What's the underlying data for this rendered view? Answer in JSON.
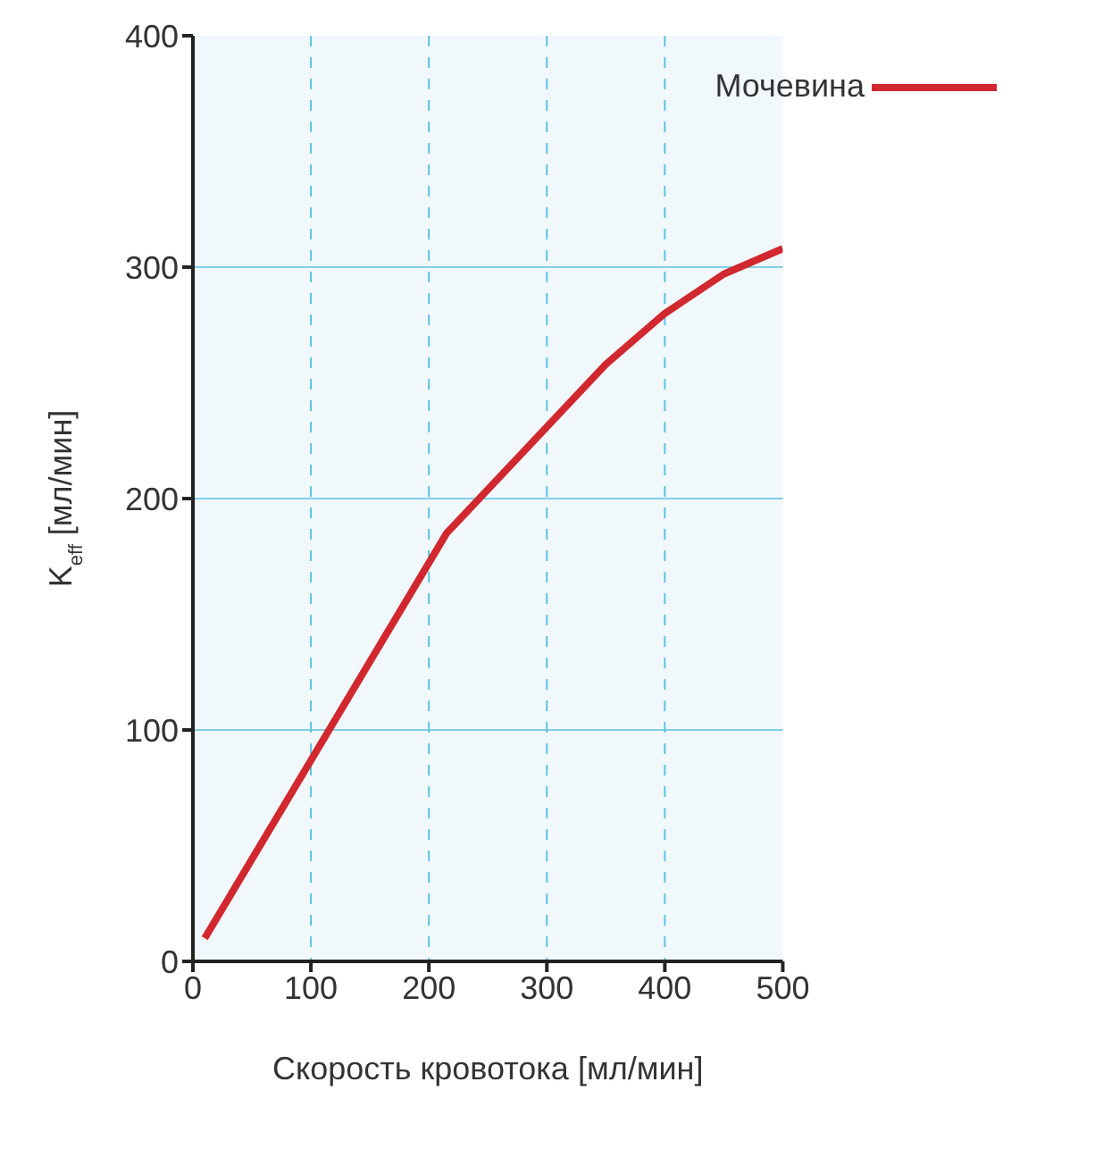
{
  "chart_data": {
    "type": "line",
    "xlabel": "Скорость кровотока [мл/мин]",
    "ylabel": "K$_{eff}$ [мл/мин]",
    "x": [
      10,
      215,
      350,
      400,
      450,
      500
    ],
    "series": [
      {
        "name": "Мочевина",
        "color": "#d0282e",
        "values": [
          10,
          185,
          258,
          280,
          297,
          308
        ]
      }
    ],
    "xlim": [
      0,
      500
    ],
    "xticks": [
      0,
      100,
      200,
      300,
      400,
      500
    ],
    "ylim": [
      0,
      400
    ],
    "yticks": [
      0,
      100,
      200,
      300,
      400
    ],
    "grid": true,
    "legend": "top right",
    "marker": "none",
    "line_style": "solid"
  }
}
